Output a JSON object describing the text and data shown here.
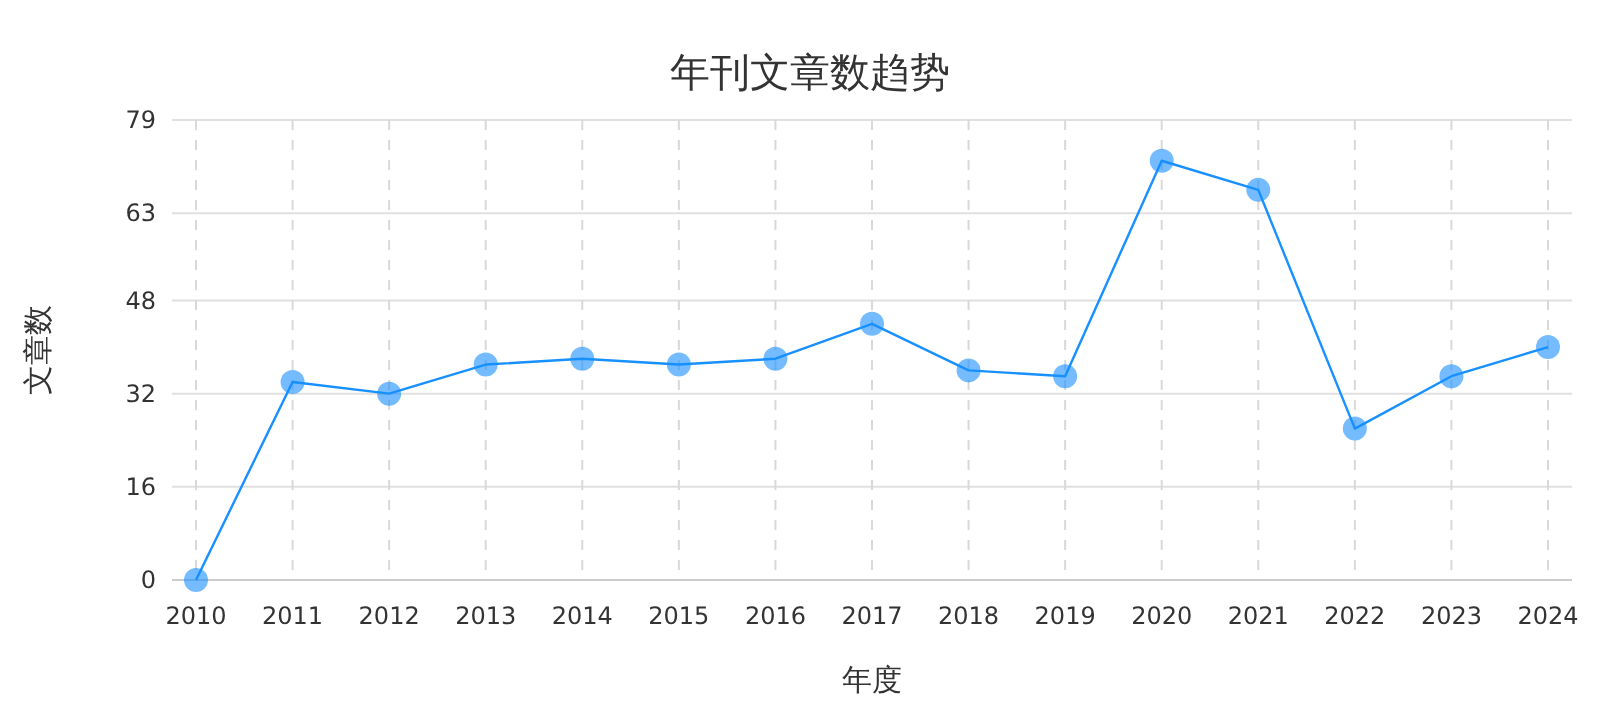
{
  "chart_data": {
    "type": "line",
    "title": "年刊文章数趋势",
    "xlabel": "年度",
    "ylabel": "文章数",
    "categories": [
      "2010",
      "2011",
      "2012",
      "2013",
      "2014",
      "2015",
      "2016",
      "2017",
      "2018",
      "2019",
      "2020",
      "2021",
      "2022",
      "2023",
      "2024"
    ],
    "series": [
      {
        "color": "#1890ff",
        "values": [
          0,
          34,
          32,
          37,
          38,
          37,
          38,
          44,
          36,
          35,
          72,
          67,
          26,
          35,
          40
        ]
      }
    ],
    "ylim": [
      0,
      79
    ],
    "yticks": [
      0,
      16,
      32,
      48,
      63,
      79
    ],
    "grid": true,
    "marker": "circle",
    "line_style": "solid"
  }
}
